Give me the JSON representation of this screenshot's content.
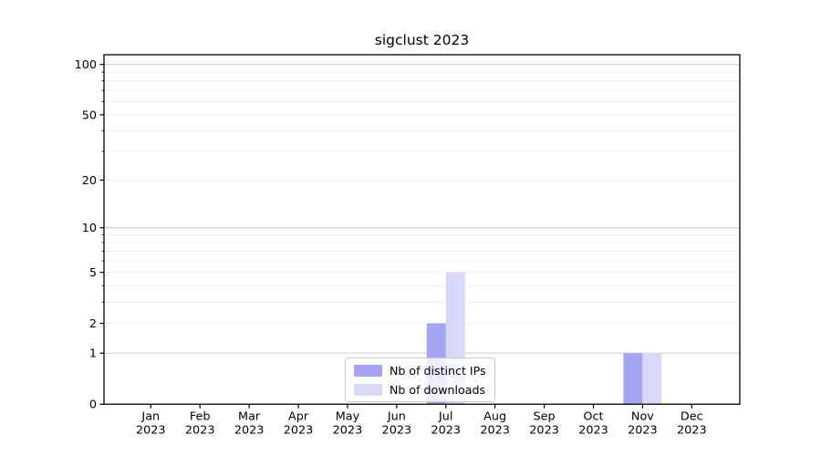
{
  "chart_data": {
    "type": "bar",
    "title": "sigclust 2023",
    "categories": [
      "Jan",
      "Feb",
      "Mar",
      "Apr",
      "May",
      "Jun",
      "Jul",
      "Aug",
      "Sep",
      "Oct",
      "Nov",
      "Dec"
    ],
    "year": "2023",
    "series": [
      {
        "name": "Nb of distinct IPs",
        "color": "#a5a5f4",
        "values": [
          0,
          0,
          0,
          0,
          0,
          0,
          2,
          0,
          0,
          0,
          1,
          0
        ]
      },
      {
        "name": "Nb of downloads",
        "color": "#d8d8f9",
        "values": [
          0,
          0,
          0,
          0,
          0,
          0,
          5,
          0,
          0,
          0,
          1,
          0
        ]
      }
    ],
    "y_axis": {
      "scale": "symlog",
      "labeled_ticks": [
        100,
        50,
        20,
        10,
        5,
        2,
        1,
        0
      ],
      "minor_ticks": [
        3,
        4,
        6,
        7,
        8,
        9,
        30,
        40,
        60,
        70,
        80,
        90
      ],
      "major_grid_values": [
        1,
        10,
        100
      ],
      "minor_grid_values": [
        2,
        3,
        4,
        5,
        6,
        7,
        8,
        9,
        20,
        30,
        40,
        50,
        60,
        70,
        80,
        90
      ],
      "ylim": [
        0,
        115
      ]
    },
    "legend_position": "lower center",
    "colors": {
      "major_grid": "#cfcfcf",
      "minor_grid": "#ededed",
      "axis": "#000000"
    }
  }
}
